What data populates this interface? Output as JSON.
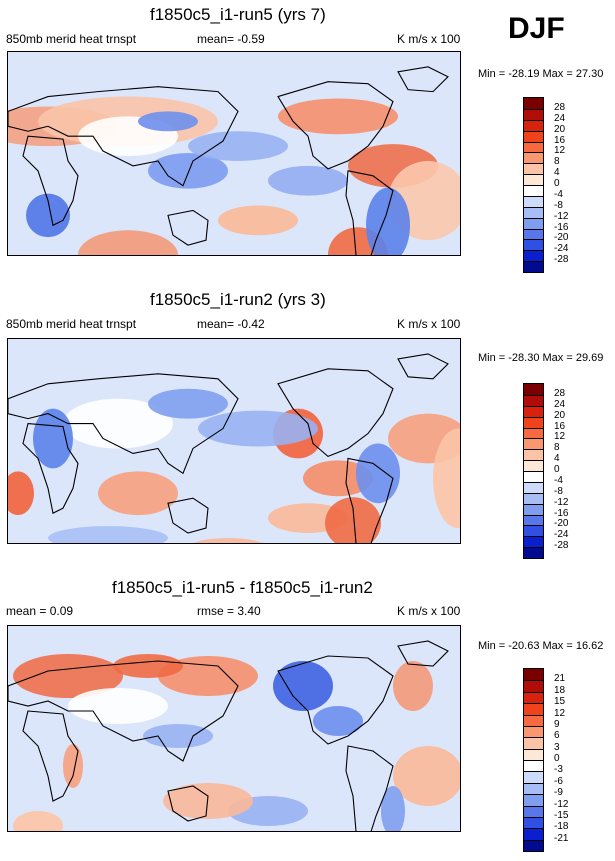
{
  "season": "DJF",
  "panels": [
    {
      "title": "f1850c5_i1-run5 (yrs 7)",
      "left_label": "850mb merid heat trnspt",
      "mid_label": "mean=  -0.59",
      "right_label": "K m/s x 100",
      "minmax": "Min = -28.19 Max =  27.30"
    },
    {
      "title": "f1850c5_i1-run2 (yrs 3)",
      "left_label": "850mb merid heat trnspt",
      "mid_label": "mean=  -0.42",
      "right_label": "K m/s x 100",
      "minmax": "Min = -28.30 Max =  29.69"
    },
    {
      "title": "f1850c5_i1-run5 - f1850c5_i1-run2",
      "left_label": "mean =   0.09",
      "mid_label": "rmse =   3.40",
      "right_label": "K m/s x 100",
      "minmax": "Min = -20.63 Max =  16.62"
    }
  ],
  "chart_data": [
    {
      "type": "heatmap",
      "title": "f1850c5_i1-run5 (yrs 7)",
      "variable": "850mb merid heat trnspt",
      "units": "K m/s x 100",
      "mean": -0.59,
      "min": -28.19,
      "max": 27.3,
      "colorbar_levels": [
        28,
        24,
        20,
        16,
        12,
        8,
        4,
        0,
        -4,
        -8,
        -12,
        -16,
        -20,
        -24,
        -28
      ],
      "colors": [
        "#7a0000",
        "#b00d08",
        "#d8220e",
        "#f0431c",
        "#f76a40",
        "#fa9773",
        "#fcc4a6",
        "#fde8d8",
        "#ffffff",
        "#cddcfb",
        "#a7bef5",
        "#7f9ef0",
        "#5777eb",
        "#3050e3",
        "#0a1fd0",
        "#000b90"
      ]
    },
    {
      "type": "heatmap",
      "title": "f1850c5_i1-run2 (yrs 3)",
      "variable": "850mb merid heat trnspt",
      "units": "K m/s x 100",
      "mean": -0.42,
      "min": -28.3,
      "max": 29.69,
      "colorbar_levels": [
        28,
        24,
        20,
        16,
        12,
        8,
        4,
        0,
        -4,
        -8,
        -12,
        -16,
        -20,
        -24,
        -28
      ],
      "colors": [
        "#7a0000",
        "#b00d08",
        "#d8220e",
        "#f0431c",
        "#f76a40",
        "#fa9773",
        "#fcc4a6",
        "#fde8d8",
        "#ffffff",
        "#cddcfb",
        "#a7bef5",
        "#7f9ef0",
        "#5777eb",
        "#3050e3",
        "#0a1fd0",
        "#000b90"
      ]
    },
    {
      "type": "heatmap",
      "title": "f1850c5_i1-run5 - f1850c5_i1-run2",
      "units": "K m/s x 100",
      "mean": 0.09,
      "rmse": 3.4,
      "min": -20.63,
      "max": 16.62,
      "colorbar_levels": [
        21,
        18,
        15,
        12,
        9,
        6,
        3,
        0,
        -3,
        -6,
        -9,
        -12,
        -15,
        -18,
        -21
      ],
      "colors": [
        "#7a0000",
        "#b00d08",
        "#d8220e",
        "#f0431c",
        "#f76a40",
        "#fa9773",
        "#fcc4a6",
        "#fde8d8",
        "#ffffff",
        "#cddcfb",
        "#a7bef5",
        "#7f9ef0",
        "#5777eb",
        "#3050e3",
        "#0a1fd0",
        "#000b90"
      ]
    }
  ]
}
